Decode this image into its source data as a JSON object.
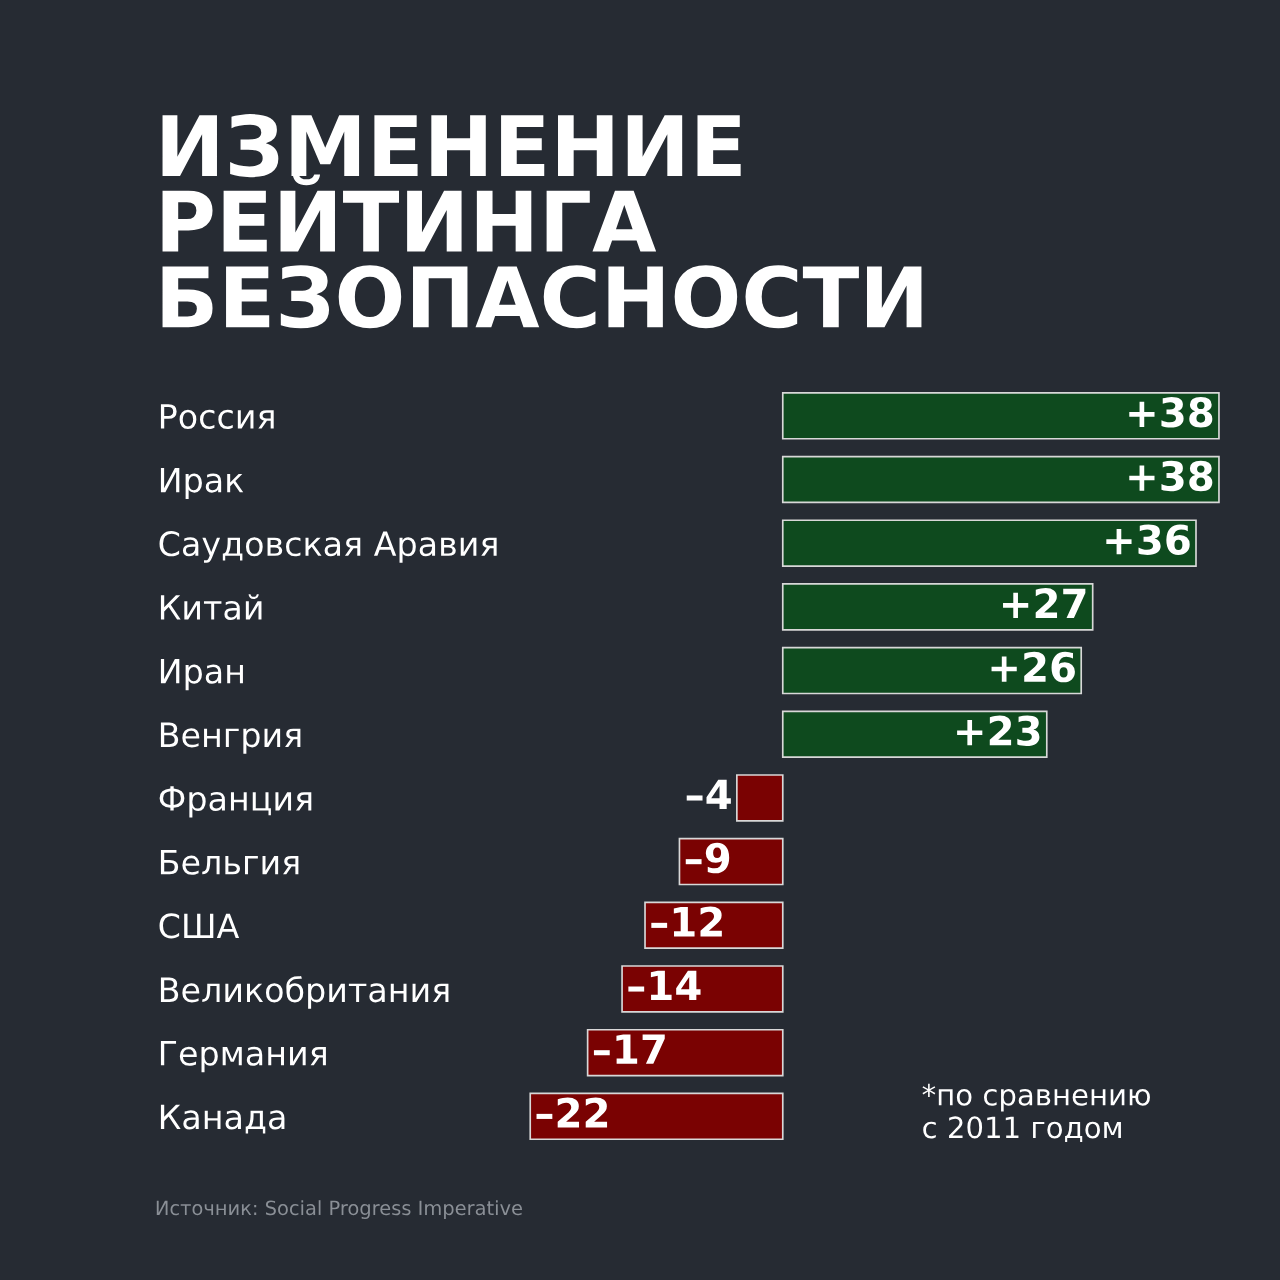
{
  "chart_data": {
    "type": "bar",
    "orientation": "horizontal",
    "title": "ИЗМЕНЕНИЕ\nРЕЙТИНГА\nБЕЗОПАСНОСТИ",
    "categories": [
      "Россия",
      "Ирак",
      "Саудовская Аравия",
      "Китай",
      "Иран",
      "Венгрия",
      "Франция",
      "Бельгия",
      "США",
      "Великобритания",
      "Германия",
      "Канада"
    ],
    "values": [
      38,
      38,
      36,
      27,
      26,
      23,
      -4,
      -9,
      -12,
      -14,
      -17,
      -22
    ],
    "colors": [
      "#0e4a1e",
      "#0e4a1e",
      "#0e4a1e",
      "#0e4a1e",
      "#0e4a1e",
      "#0e4a1e",
      "#7a0202",
      "#7a0202",
      "#7a0202",
      "#7a0202",
      "#7a0202",
      "#7a0202"
    ],
    "value_labels": [
      "+38",
      "+38",
      "+36",
      "+27",
      "+26",
      "+23",
      "–4",
      "–9",
      "–12",
      "–14",
      "–17",
      "–22"
    ],
    "annotations": [
      "*по сравнению\nс 2011 годом",
      "Источник: Social Progress Imperative"
    ],
    "grid": false,
    "legend": false
  }
}
